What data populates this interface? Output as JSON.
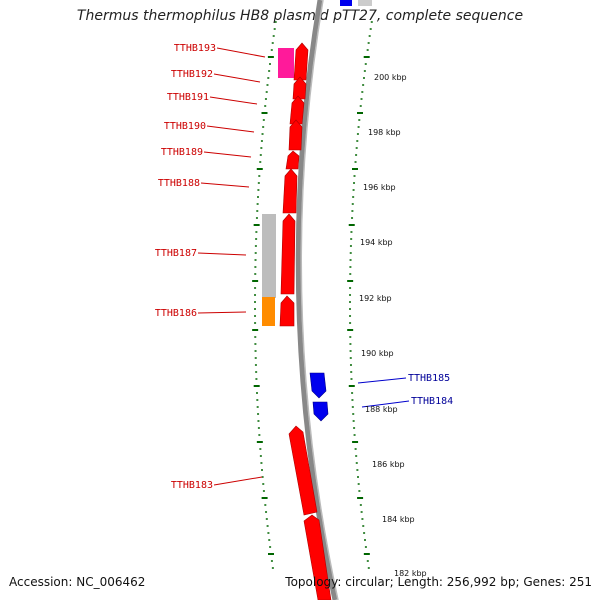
{
  "title": "Thermus thermophilus HB8 plasmid pTT27, complete sequence",
  "footer": {
    "accession": "Accession: NC_006462",
    "topology": "Topology: circular; Length: 256,992 bp; Genes: 251"
  },
  "colors": {
    "cds": "#ff0000",
    "cds_outline": "#b00000",
    "reverse_strand_gene": "#0000ee",
    "highlight_pink": "#ff1a9a",
    "highlight_grey": "#bdbdbd",
    "highlight_orange": "#ff8c00",
    "tick_green": "#006600",
    "backbone": "#808080"
  },
  "position_labels": [
    "200 kbp",
    "198 kbp",
    "196 kbp",
    "194 kbp",
    "192 kbp",
    "190 kbp",
    "188 kbp",
    "186 kbp",
    "184 kbp",
    "182 kbp"
  ],
  "forward_genes": [
    "TTHB193",
    "TTHB192",
    "TTHB191",
    "TTHB190",
    "TTHB189",
    "TTHB188",
    "TTHB187",
    "TTHB186",
    "TTHB183"
  ],
  "reverse_genes": [
    "TTHB185",
    "TTHB184"
  ]
}
